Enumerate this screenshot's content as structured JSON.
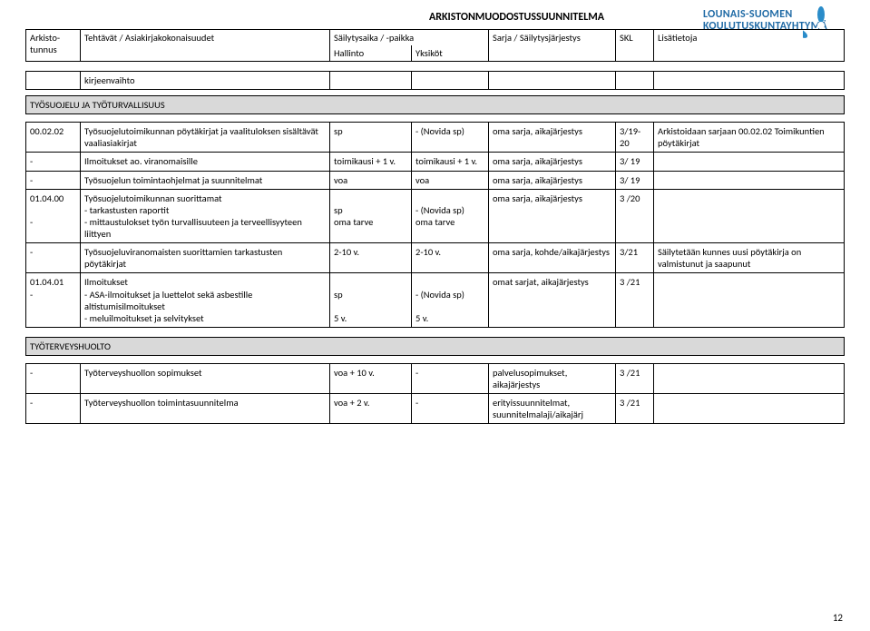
{
  "doc_title": "ARKISTONMUODOSTUSSUUNNITELMA",
  "logo": {
    "line1": "LOUNAIS-SUOMEN",
    "line2": "KOULUTUSKUNTAYHTYMÄ"
  },
  "header": {
    "c1": "Arkisto-\ntunnus",
    "c2": "Tehtävät / Asiakirjakokonaisuudet",
    "c3a": "Säilytysaika / -paikka",
    "c3b": "Hallinto",
    "c4b": "Yksiköt",
    "c5": "Sarja / Säilytysjärjestys",
    "c6": "SKL",
    "c7": "Lisätietoja"
  },
  "small_row": {
    "c2": "kirjeenvaihto"
  },
  "section1": "TYÖSUOJELU JA TYÖTURVALLISUUS",
  "rows1": [
    {
      "c1": "00.02.02",
      "c2": "Työsuojelutoimikunnan pöytäkirjat ja vaalituloksen sisältävät vaaliasiakirjat",
      "c3": "sp",
      "c4": "- (Novida sp)",
      "c5": "oma sarja, aikajärjestys",
      "c6": "3/19-20",
      "c7": "Arkistoidaan sarjaan 00.02.02 Toimikuntien pöytäkirjat"
    },
    {
      "c1": "-",
      "c2": "Ilmoitukset ao. viranomaisille",
      "c3": "toimikausi + 1 v.",
      "c4": "toimikausi + 1 v.",
      "c5": "oma sarja, aikajärjestys",
      "c6": "3/ 19",
      "c7": ""
    },
    {
      "c1": "-",
      "c2": "Työsuojelun toimintaohjelmat ja suunnitelmat",
      "c3": "voa",
      "c4": "voa",
      "c5": "oma sarja, aikajärjestys",
      "c6": "3/ 19",
      "c7": ""
    },
    {
      "c1": "01.04.00\n\n-",
      "c2": "Työsuojelutoimikunnan suorittamat\n- tarkastusten raportit\n- mittaustulokset työn turvallisuuteen ja terveellisyyteen liittyen",
      "c3": "\nsp\noma tarve",
      "c4": "\n- (Novida sp)\noma tarve",
      "c5": "oma sarja, aikajärjestys",
      "c6": "3 /20",
      "c7": ""
    },
    {
      "c1": "-",
      "c2": "Työsuojeluviranomaisten suorittamien tarkastusten pöytäkirjat",
      "c3": "2-10 v.",
      "c4": "2-10 v.",
      "c5": "oma sarja, kohde/aikajärjestys",
      "c6": "3/21",
      "c7": "Säilytetään kunnes uusi pöytäkirja on valmistunut ja saapunut"
    },
    {
      "c1": "01.04.01\n-",
      "c2": "Ilmoitukset\n    -    ASA-ilmoitukset ja luettelot sekä asbestille altistumisilmoitukset\n    -    meluilmoitukset ja selvitykset",
      "c3": "\nsp\n\n5 v.",
      "c4": "\n- (Novida sp)\n\n5 v.",
      "c5": "omat sarjat, aikajärjestys",
      "c6": "3 /21",
      "c7": ""
    }
  ],
  "section2": "TYÖTERVEYSHUOLTO",
  "rows2": [
    {
      "c1": "-",
      "c2": "Työterveyshuollon sopimukset",
      "c3": "voa + 10 v.",
      "c4": "-",
      "c5": "palvelusopimukset, aikajärjestys",
      "c6": "3 /21",
      "c7": ""
    },
    {
      "c1": "-",
      "c2": "Työterveyshuollon toimintasuunnitelma",
      "c3": "voa + 2 v.",
      "c4": "-",
      "c5": "erityissuunnitelmat, suunnitelmalaji/aikajärj",
      "c6": "3 /21",
      "c7": ""
    }
  ],
  "page_num": "12"
}
